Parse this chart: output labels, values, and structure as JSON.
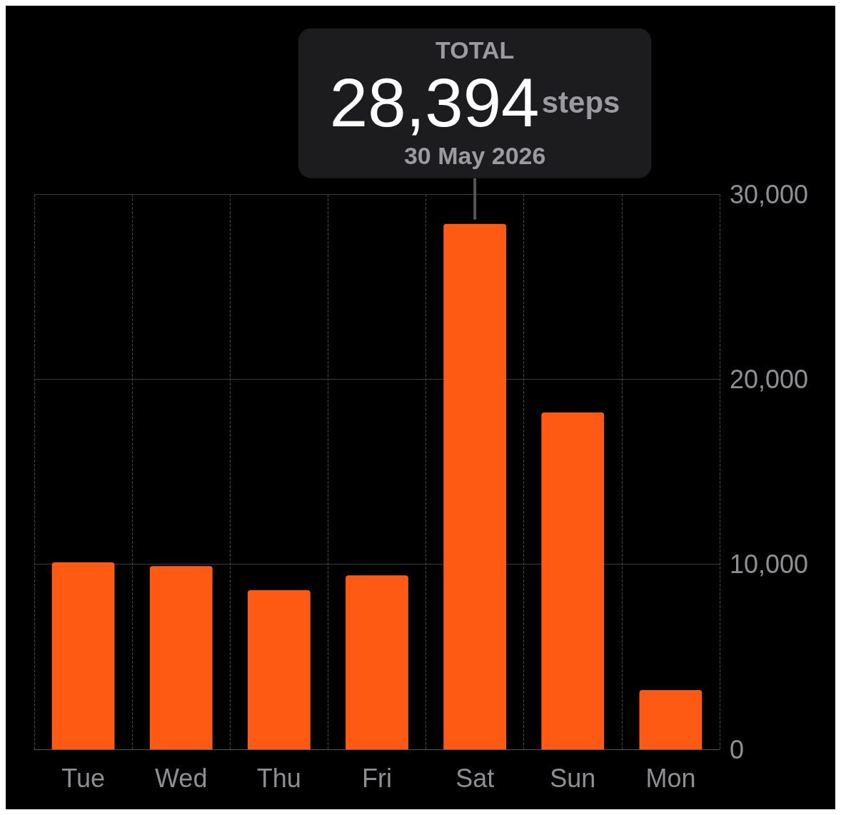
{
  "chart_data": {
    "type": "bar",
    "categories": [
      "Tue",
      "Wed",
      "Thu",
      "Fri",
      "Sat",
      "Sun",
      "Mon"
    ],
    "values": [
      10100,
      9900,
      8600,
      9400,
      28394,
      18200,
      3200
    ],
    "color": "#ff5a14",
    "value_labels": [
      null,
      null,
      null,
      null,
      "28,394",
      null,
      null
    ],
    "annotations": [
      "TOTAL",
      "steps",
      "30 May 2026"
    ],
    "ylim": [
      0,
      30000
    ],
    "yticks": [
      0,
      {
        "value": 10000,
        "label": "10,000"
      },
      {
        "value": 20000,
        "label": "20,000"
      },
      {
        "value": 30000,
        "label": "30,000"
      }
    ],
    "grid": true
  }
}
